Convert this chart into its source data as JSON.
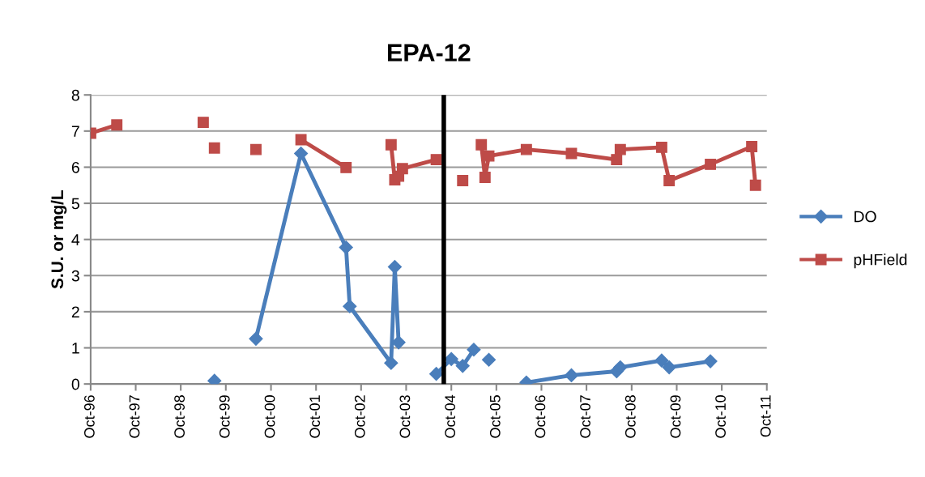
{
  "chart_data": {
    "type": "line",
    "title": "EPA-12",
    "ylabel": "S.U. or mg/L",
    "xlim": [
      "1996-10",
      "2011-10"
    ],
    "xticks": [
      {
        "value": "1996-10",
        "label": "Oct-96"
      },
      {
        "value": "1997-10",
        "label": "Oct-97"
      },
      {
        "value": "1998-10",
        "label": "Oct-98"
      },
      {
        "value": "1999-10",
        "label": "Oct-99"
      },
      {
        "value": "2000-10",
        "label": "Oct-00"
      },
      {
        "value": "2001-10",
        "label": "Oct-01"
      },
      {
        "value": "2002-10",
        "label": "Oct-02"
      },
      {
        "value": "2003-10",
        "label": "Oct-03"
      },
      {
        "value": "2004-10",
        "label": "Oct-04"
      },
      {
        "value": "2005-10",
        "label": "Oct-05"
      },
      {
        "value": "2006-10",
        "label": "Oct-06"
      },
      {
        "value": "2007-10",
        "label": "Oct-07"
      },
      {
        "value": "2008-10",
        "label": "Oct-08"
      },
      {
        "value": "2009-10",
        "label": "Oct-09"
      },
      {
        "value": "2010-10",
        "label": "Oct-10"
      },
      {
        "value": "2011-10",
        "label": "Oct-11"
      }
    ],
    "ylim": [
      0,
      8
    ],
    "yticks": [
      0,
      1,
      2,
      3,
      4,
      5,
      6,
      7,
      8
    ],
    "grid": "y",
    "legend": "right",
    "line_style": "solid",
    "ref_lines": [
      {
        "axis": "x",
        "value": "2004-08",
        "label": null,
        "color": "#000000"
      }
    ],
    "series": [
      {
        "name": "DO",
        "color": "#4a7ebb",
        "marker": "diamond",
        "x": [
          "1999-07",
          "2000-01",
          "2000-06",
          "2001-06",
          "2002-06",
          "2002-07",
          "2003-06",
          "2003-07",
          "2003-08",
          "2004-01",
          "2004-06",
          "2004-10",
          "2005-01",
          "2005-04",
          "2005-06",
          "2005-08",
          "2006-01",
          "2006-06",
          "2007-06",
          "2008-06",
          "2008-07",
          "2009-06",
          "2009-08",
          "2010-07"
        ],
        "values": [
          0.09,
          null,
          1.25,
          6.38,
          3.78,
          2.15,
          0.58,
          3.24,
          1.15,
          null,
          0.28,
          0.69,
          0.5,
          0.95,
          null,
          0.67,
          null,
          0.04,
          0.24,
          0.35,
          0.46,
          0.65,
          0.46,
          0.63
        ]
      },
      {
        "name": "pHField",
        "color": "#be4b48",
        "marker": "square",
        "x": [
          "1996-10",
          "1997-05",
          "1998-05",
          "1999-04",
          "1999-05",
          "1999-07",
          "2000-01",
          "2000-06",
          "2000-12",
          "2001-06",
          "2002-06",
          "2002-12",
          "2003-06",
          "2003-07",
          "2003-08",
          "2003-09",
          "2004-06",
          "2004-09",
          "2005-01",
          "2005-03",
          "2005-06",
          "2005-07",
          "2005-08",
          "2006-06",
          "2007-06",
          "2008-06",
          "2008-07",
          "2009-06",
          "2009-08",
          "2010-07",
          "2011-06",
          "2011-07"
        ],
        "values": [
          6.94,
          7.17,
          null,
          7.24,
          null,
          6.53,
          null,
          6.49,
          null,
          6.76,
          5.99,
          null,
          6.62,
          5.65,
          5.75,
          5.96,
          6.21,
          null,
          5.63,
          null,
          6.62,
          5.72,
          6.31,
          6.49,
          6.38,
          6.21,
          6.49,
          6.55,
          5.63,
          6.08,
          6.57,
          5.5
        ]
      }
    ]
  }
}
